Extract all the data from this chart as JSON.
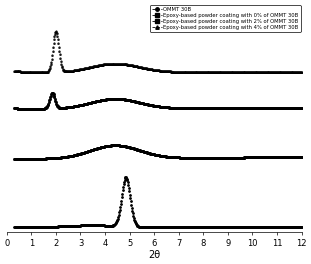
{
  "xlabel": "2θ",
  "xlim": [
    0,
    12
  ],
  "xticks": [
    0,
    1,
    2,
    3,
    4,
    5,
    6,
    7,
    8,
    9,
    10,
    11,
    12
  ],
  "legend_entries": [
    "OMMT 30B",
    "Epoxy-based powder coating with 0% of OMMT 30B",
    "Epoxy-based powder coating with 2% of OMMT 30B",
    "Epoxy-based powder coating with 4% of OMMT 30B"
  ],
  "background_color": "#ffffff",
  "line_color": "#000000",
  "series_offsets": [
    0.0,
    0.3,
    0.52,
    0.68
  ],
  "series_scales": [
    0.22,
    0.06,
    0.07,
    0.18
  ]
}
